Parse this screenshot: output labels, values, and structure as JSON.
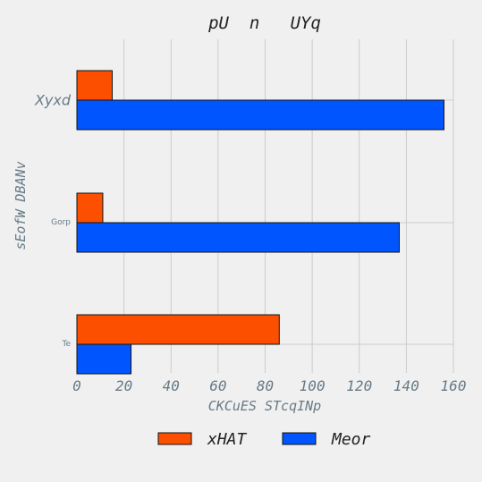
{
  "chart_data": {
    "type": "bar",
    "orientation": "horizontal",
    "title": "pU  n   UYq",
    "xlabel": "CKCuES STcqINp",
    "ylabel": "sEofW DBANv",
    "categories": [
      "Te",
      "Gorp",
      "Xyxd"
    ],
    "series": [
      {
        "name": "xHAT",
        "color": "#fc4f00",
        "values": [
          86,
          11,
          15
        ]
      },
      {
        "name": "Meor",
        "color": "#0055ff",
        "values": [
          23,
          137,
          156
        ]
      }
    ],
    "xlim": [
      0,
      160
    ],
    "xticks": [
      0,
      20,
      40,
      60,
      80,
      100,
      120,
      140,
      160
    ],
    "grid": true,
    "legend": "bottom-center"
  }
}
